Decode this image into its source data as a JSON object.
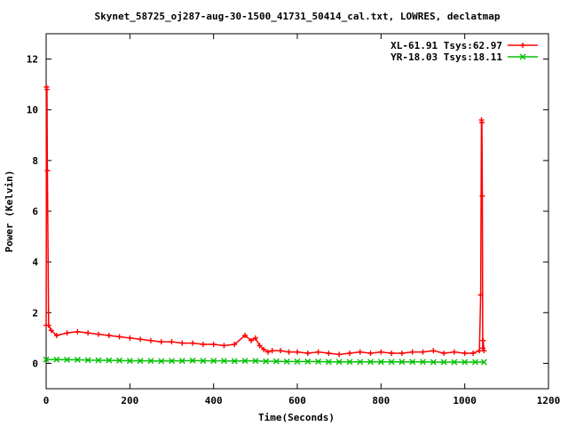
{
  "chart_data": {
    "type": "line",
    "title": "Skynet_58725_oj287-aug-30-1500_41731_50414_cal.txt, LOWRES, declatmap",
    "xlabel": "Time(Seconds)",
    "ylabel": "Power (Kelvin)",
    "xlim": [
      0,
      1200
    ],
    "ylim": [
      -1,
      13
    ],
    "xticks": [
      0,
      200,
      400,
      600,
      800,
      1000,
      1200
    ],
    "yticks": [
      0,
      2,
      4,
      6,
      8,
      10,
      12
    ],
    "legend_position": "top-right",
    "series": [
      {
        "name": "XL-61.91 Tsys:62.97",
        "color": "#ff0000",
        "marker": "plus",
        "x": [
          0,
          1,
          2,
          3,
          6,
          12,
          25,
          50,
          75,
          100,
          125,
          150,
          175,
          200,
          225,
          250,
          275,
          300,
          325,
          350,
          375,
          400,
          425,
          450,
          475,
          490,
          500,
          510,
          520,
          530,
          540,
          560,
          580,
          600,
          625,
          650,
          675,
          700,
          725,
          750,
          775,
          800,
          825,
          850,
          875,
          900,
          925,
          950,
          975,
          1000,
          1020,
          1035,
          1038,
          1040,
          1041,
          1042,
          1043,
          1044,
          1046
        ],
        "y": [
          1.5,
          10.9,
          10.8,
          7.6,
          1.5,
          1.3,
          1.1,
          1.2,
          1.25,
          1.2,
          1.15,
          1.1,
          1.05,
          1.0,
          0.95,
          0.9,
          0.85,
          0.85,
          0.8,
          0.8,
          0.75,
          0.75,
          0.7,
          0.75,
          1.1,
          0.9,
          1.0,
          0.7,
          0.55,
          0.45,
          0.5,
          0.5,
          0.45,
          0.45,
          0.4,
          0.45,
          0.4,
          0.35,
          0.4,
          0.45,
          0.4,
          0.45,
          0.4,
          0.4,
          0.45,
          0.45,
          0.5,
          0.4,
          0.45,
          0.4,
          0.4,
          0.5,
          2.7,
          9.6,
          9.5,
          6.6,
          0.6,
          0.9,
          0.5
        ]
      },
      {
        "name": "YR-18.03 Tsys:18.11",
        "color": "#00c000",
        "marker": "cross",
        "x": [
          0,
          25,
          50,
          75,
          100,
          125,
          150,
          175,
          200,
          225,
          250,
          275,
          300,
          325,
          350,
          375,
          400,
          425,
          450,
          475,
          500,
          525,
          550,
          575,
          600,
          625,
          650,
          675,
          700,
          725,
          750,
          775,
          800,
          825,
          850,
          875,
          900,
          925,
          950,
          975,
          1000,
          1025,
          1046
        ],
        "y": [
          0.15,
          0.15,
          0.14,
          0.14,
          0.13,
          0.12,
          0.12,
          0.11,
          0.1,
          0.1,
          0.1,
          0.09,
          0.1,
          0.1,
          0.11,
          0.1,
          0.1,
          0.1,
          0.09,
          0.1,
          0.1,
          0.08,
          0.08,
          0.07,
          0.07,
          0.07,
          0.07,
          0.06,
          0.06,
          0.06,
          0.06,
          0.06,
          0.06,
          0.06,
          0.06,
          0.06,
          0.06,
          0.05,
          0.05,
          0.05,
          0.05,
          0.05,
          0.05
        ]
      }
    ]
  }
}
